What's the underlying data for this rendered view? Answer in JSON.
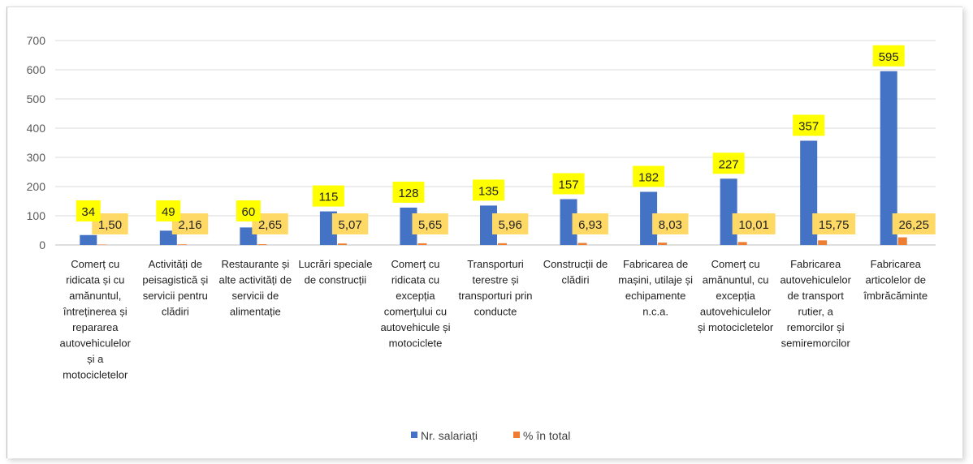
{
  "chart_data": {
    "type": "bar",
    "title": "",
    "xlabel": "",
    "ylabel": "",
    "ylim": [
      0,
      700
    ],
    "yticks": [
      0,
      100,
      200,
      300,
      400,
      500,
      600,
      700
    ],
    "grid": true,
    "legend_position": "bottom",
    "categories": [
      [
        "Comerț cu",
        "ridicata și cu",
        "amănuntul,",
        "întreținerea și",
        "repararea",
        "autovehiculelor",
        "și a",
        "motocicletelor"
      ],
      [
        "Activități de",
        "peisagistică și",
        "servicii pentru",
        "clădiri"
      ],
      [
        "Restaurante și",
        "alte activități de",
        "servicii de",
        "alimentație"
      ],
      [
        "Lucrări speciale",
        "de construcții"
      ],
      [
        "Comerț cu",
        "ridicata cu",
        "excepția",
        "comerțului cu",
        "autovehicule și",
        "motociclete"
      ],
      [
        "Transporturi",
        "terestre și",
        "transporturi prin",
        "conducte"
      ],
      [
        "Construcții de",
        "clădiri"
      ],
      [
        "Fabricarea de",
        "mașini, utilaje și",
        "echipamente",
        "n.c.a."
      ],
      [
        "Comerț cu",
        "amănuntul, cu",
        "excepția",
        "autovehiculelor",
        "și motocicletelor"
      ],
      [
        "Fabricarea",
        "autovehiculelor",
        "de transport",
        "rutier, a",
        "remorcilor și",
        "semiremorcilor"
      ],
      [
        "Fabricarea",
        "articolelor de",
        "îmbrăcăminte"
      ]
    ],
    "series": [
      {
        "name": "Nr. salariați",
        "color": "#4472c4",
        "label_bg": "#ffff00",
        "values": [
          34,
          49,
          60,
          115,
          128,
          135,
          157,
          182,
          227,
          357,
          595
        ],
        "labels": [
          "34",
          "49",
          "60",
          "115",
          "128",
          "135",
          "157",
          "182",
          "227",
          "357",
          "595"
        ]
      },
      {
        "name": "% în total",
        "color": "#ed7d31",
        "label_bg": "#ffd966",
        "values": [
          1.5,
          2.16,
          2.65,
          5.07,
          5.65,
          5.96,
          6.93,
          8.03,
          10.01,
          15.75,
          26.25
        ],
        "labels": [
          "1,50",
          "2,16",
          "2,65",
          "5,07",
          "5,65",
          "5,96",
          "6,93",
          "8,03",
          "10,01",
          "15,75",
          "26,25"
        ]
      }
    ]
  }
}
